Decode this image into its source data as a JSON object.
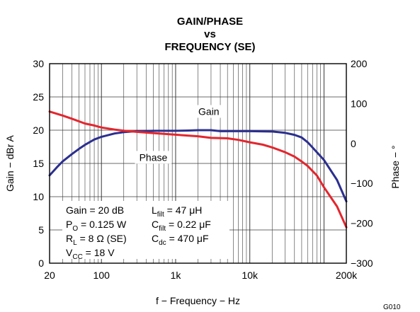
{
  "chart_data": {
    "type": "line",
    "title_lines": [
      "GAIN/PHASE",
      "vs",
      "FREQUENCY (SE)"
    ],
    "xlabel": "f − Frequency − Hz",
    "ylabel_left": "Gain − dBr A",
    "ylabel_right": "Phase − °",
    "x_scale": "log",
    "xlim": [
      20,
      200000
    ],
    "ylim_left": [
      0,
      30
    ],
    "ylim_right": [
      -300,
      200
    ],
    "x_ticks": [
      {
        "value": 20,
        "label": "20"
      },
      {
        "value": 100,
        "label": "100"
      },
      {
        "value": 1000,
        "label": "1k"
      },
      {
        "value": 10000,
        "label": "10k"
      },
      {
        "value": 200000,
        "label": "200k"
      }
    ],
    "y_ticks_left": [
      0,
      5,
      10,
      15,
      20,
      25,
      30
    ],
    "y_ticks_right": [
      {
        "value": 200,
        "label": "200"
      },
      {
        "value": 100,
        "label": "100"
      },
      {
        "value": 0,
        "label": "0"
      },
      {
        "value": -100,
        "label": "−100"
      },
      {
        "value": -200,
        "label": "−200"
      },
      {
        "value": -300,
        "label": "−300"
      }
    ],
    "grid": true,
    "series": [
      {
        "name": "Gain",
        "axis": "left",
        "color": "#2b2f8f",
        "points": [
          [
            20,
            13.2
          ],
          [
            25,
            14.4
          ],
          [
            30,
            15.3
          ],
          [
            40,
            16.4
          ],
          [
            50,
            17.2
          ],
          [
            60,
            17.8
          ],
          [
            80,
            18.6
          ],
          [
            100,
            19.0
          ],
          [
            150,
            19.5
          ],
          [
            200,
            19.7
          ],
          [
            300,
            19.85
          ],
          [
            500,
            19.9
          ],
          [
            1000,
            19.9
          ],
          [
            1500,
            19.95
          ],
          [
            2000,
            20.0
          ],
          [
            3000,
            20.0
          ],
          [
            4000,
            19.85
          ],
          [
            5000,
            19.85
          ],
          [
            10000,
            19.85
          ],
          [
            20000,
            19.8
          ],
          [
            30000,
            19.6
          ],
          [
            40000,
            19.3
          ],
          [
            50000,
            18.9
          ],
          [
            60000,
            18.2
          ],
          [
            70000,
            17.4
          ],
          [
            100000,
            15.5
          ],
          [
            150000,
            12.5
          ],
          [
            200000,
            9.3
          ]
        ]
      },
      {
        "name": "Phase",
        "axis": "right",
        "color": "#e3262e",
        "points": [
          [
            20,
            80
          ],
          [
            30,
            70
          ],
          [
            40,
            62
          ],
          [
            60,
            50
          ],
          [
            80,
            45
          ],
          [
            100,
            40
          ],
          [
            150,
            35
          ],
          [
            200,
            32
          ],
          [
            300,
            29
          ],
          [
            500,
            26
          ],
          [
            1000,
            22
          ],
          [
            2000,
            18
          ],
          [
            3000,
            14
          ],
          [
            5000,
            13
          ],
          [
            7000,
            9
          ],
          [
            10000,
            3
          ],
          [
            15000,
            -3
          ],
          [
            20000,
            -10
          ],
          [
            30000,
            -22
          ],
          [
            40000,
            -33
          ],
          [
            50000,
            -45
          ],
          [
            60000,
            -56
          ],
          [
            80000,
            -80
          ],
          [
            100000,
            -110
          ],
          [
            150000,
            -158
          ],
          [
            200000,
            -210
          ]
        ]
      }
    ],
    "series_labels": [
      {
        "text": "Gain",
        "x": 2800,
        "y_left": 22.5
      },
      {
        "text": "Phase",
        "x": 500,
        "y_left": 15.6
      }
    ],
    "annotations": {
      "col1": [
        {
          "main": "Gain = 20 dB"
        },
        {
          "main": "P",
          "sub": "O",
          "rest": " = 0.125 W"
        },
        {
          "main": "R",
          "sub": "L",
          "rest": " = 8 Ω (SE)"
        },
        {
          "main": "V",
          "sub": "CC",
          "rest": " = 18 V"
        }
      ],
      "col2": [
        {
          "main": "L",
          "sub": "filt",
          "rest": "  = 47 μH"
        },
        {
          "main": "C",
          "sub": "filt",
          "rest": "  = 0.22 μF"
        },
        {
          "main": "C",
          "sub": "dc",
          "rest": "  = 470 μF"
        }
      ]
    },
    "figure_code": "G010"
  }
}
